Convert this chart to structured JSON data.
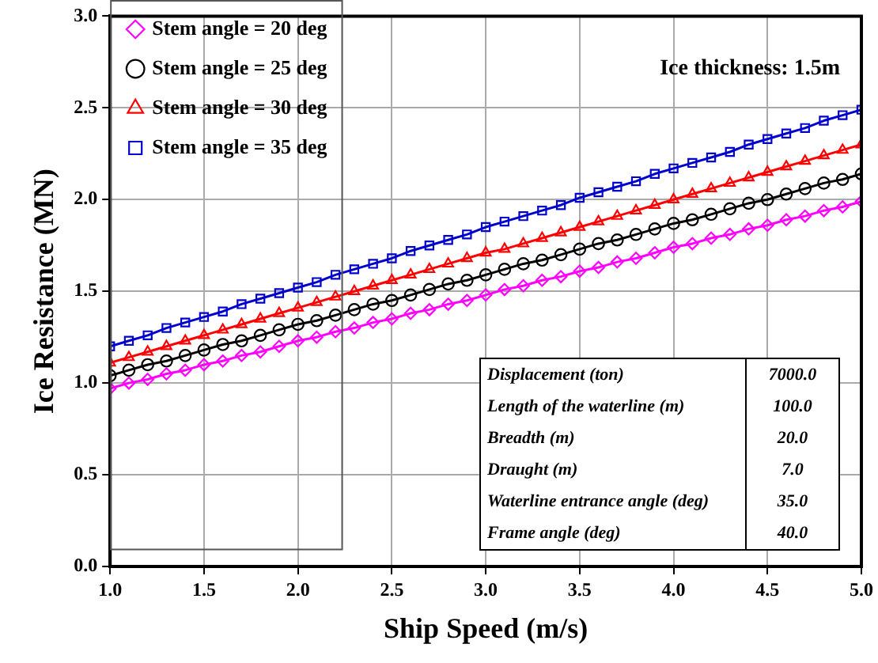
{
  "chart_data": {
    "type": "line",
    "xlabel": "Ship Speed (m/s)",
    "ylabel": "Ice Resistance (MN)",
    "x": [
      1.0,
      1.1,
      1.2,
      1.3,
      1.4,
      1.5,
      1.6,
      1.7,
      1.8,
      1.9,
      2.0,
      2.1,
      2.2,
      2.3,
      2.4,
      2.5,
      2.6,
      2.7,
      2.8,
      2.9,
      3.0,
      3.1,
      3.2,
      3.3,
      3.4,
      3.5,
      3.6,
      3.7,
      3.8,
      3.9,
      4.0,
      4.1,
      4.2,
      4.3,
      4.4,
      4.5,
      4.6,
      4.7,
      4.8,
      4.9,
      5.0
    ],
    "series": [
      {
        "name": "Stem angle = 20 deg",
        "color": "#ff00ff",
        "marker": "diamond",
        "values": [
          0.97,
          1.0,
          1.02,
          1.05,
          1.07,
          1.1,
          1.12,
          1.15,
          1.17,
          1.2,
          1.23,
          1.25,
          1.28,
          1.3,
          1.33,
          1.35,
          1.38,
          1.4,
          1.43,
          1.45,
          1.48,
          1.51,
          1.53,
          1.56,
          1.58,
          1.61,
          1.63,
          1.66,
          1.68,
          1.71,
          1.74,
          1.76,
          1.79,
          1.81,
          1.84,
          1.86,
          1.89,
          1.91,
          1.94,
          1.96,
          1.99
        ]
      },
      {
        "name": "Stem angle = 25 deg",
        "color": "#000000",
        "marker": "circle",
        "values": [
          1.04,
          1.07,
          1.1,
          1.12,
          1.15,
          1.18,
          1.21,
          1.23,
          1.26,
          1.29,
          1.32,
          1.34,
          1.37,
          1.4,
          1.43,
          1.45,
          1.48,
          1.51,
          1.54,
          1.56,
          1.59,
          1.62,
          1.65,
          1.67,
          1.7,
          1.73,
          1.76,
          1.78,
          1.81,
          1.84,
          1.87,
          1.89,
          1.92,
          1.95,
          1.98,
          2.0,
          2.03,
          2.06,
          2.09,
          2.11,
          2.14
        ]
      },
      {
        "name": "Stem angle = 30 deg",
        "color": "#ff0000",
        "marker": "triangle",
        "values": [
          1.11,
          1.14,
          1.17,
          1.2,
          1.23,
          1.26,
          1.29,
          1.32,
          1.35,
          1.38,
          1.41,
          1.44,
          1.47,
          1.5,
          1.53,
          1.56,
          1.59,
          1.62,
          1.65,
          1.68,
          1.71,
          1.73,
          1.76,
          1.79,
          1.82,
          1.85,
          1.88,
          1.91,
          1.94,
          1.97,
          2.0,
          2.03,
          2.06,
          2.09,
          2.12,
          2.15,
          2.18,
          2.21,
          2.24,
          2.27,
          2.3
        ]
      },
      {
        "name": "Stem angle = 35 deg",
        "color": "#0000cc",
        "marker": "square",
        "values": [
          1.2,
          1.23,
          1.26,
          1.3,
          1.33,
          1.36,
          1.39,
          1.43,
          1.46,
          1.49,
          1.52,
          1.55,
          1.59,
          1.62,
          1.65,
          1.68,
          1.72,
          1.75,
          1.78,
          1.81,
          1.85,
          1.88,
          1.91,
          1.94,
          1.97,
          2.01,
          2.04,
          2.07,
          2.1,
          2.14,
          2.17,
          2.2,
          2.23,
          2.26,
          2.3,
          2.33,
          2.36,
          2.39,
          2.43,
          2.46,
          2.49
        ]
      }
    ],
    "xlim": [
      1.0,
      5.0
    ],
    "xticks": [
      {
        "value": 1,
        "label": "1.0"
      },
      {
        "value": 1.5,
        "label": "1.5"
      },
      {
        "value": 2,
        "label": "2.0"
      },
      {
        "value": 2.5,
        "label": "2.5"
      },
      {
        "value": 3,
        "label": "3.0"
      },
      {
        "value": 3.5,
        "label": "3.5"
      },
      {
        "value": 4,
        "label": "4.0"
      },
      {
        "value": 4.5,
        "label": "4.5"
      },
      {
        "value": 5,
        "label": "5.0"
      }
    ],
    "ylim": [
      0,
      3.0
    ],
    "yticks": [
      {
        "value": 0,
        "label": "0.0"
      },
      {
        "value": 0.5,
        "label": "0.5"
      },
      {
        "value": 1,
        "label": "1.0"
      },
      {
        "value": 1.5,
        "label": "1.5"
      },
      {
        "value": 2,
        "label": "2.0"
      },
      {
        "value": 2.5,
        "label": "2.5"
      },
      {
        "value": 3,
        "label": "3.0"
      }
    ],
    "grid": true,
    "legend": "top left",
    "line_style": "solid",
    "annotations": [
      "Ice thickness: 1.5m",
      "Displacement (ton)",
      "7000.0",
      "Length of the waterline (m)",
      "100.0",
      "Breadth (m)",
      "20.0",
      "Draught (m)",
      "7.0",
      "Waterline entrance angle (deg)",
      "35.0",
      "Frame angle (deg)",
      "40.0"
    ]
  }
}
